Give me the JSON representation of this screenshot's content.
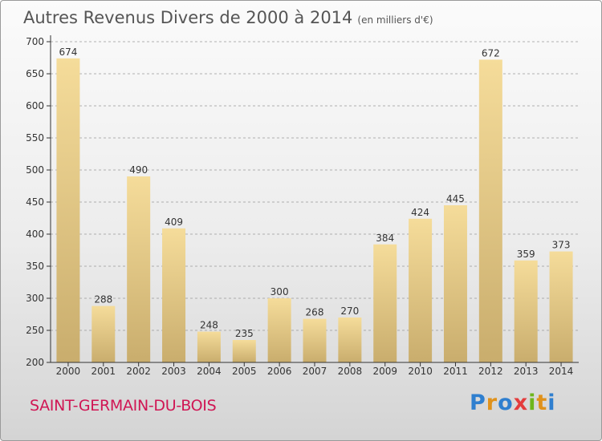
{
  "header": {
    "title": "Autres Revenus Divers de 2000 à 2014",
    "unit": "(en milliers d'€)"
  },
  "footer": {
    "commune": "SAINT-GERMAIN-DU-BOIS",
    "logo": "Proxiti"
  },
  "colors": {
    "bar_light": "#f5dc9a",
    "bar_dark": "#c9ad6d",
    "axis": "#333333",
    "grid": "#999999",
    "commune": "#d01654"
  },
  "chart_data": {
    "type": "bar",
    "categories": [
      "2000",
      "2001",
      "2002",
      "2003",
      "2004",
      "2005",
      "2006",
      "2007",
      "2008",
      "2009",
      "2010",
      "2011",
      "2012",
      "2013",
      "2014"
    ],
    "values": [
      674,
      288,
      490,
      409,
      248,
      235,
      300,
      268,
      270,
      384,
      424,
      445,
      672,
      359,
      373
    ],
    "title": "Autres Revenus Divers de 2000 à 2014",
    "subtitle": "(en milliers d'€)",
    "xlabel": "",
    "ylabel": "",
    "ylim": [
      200,
      700
    ],
    "yticks": [
      200,
      250,
      300,
      350,
      400,
      450,
      500,
      550,
      600,
      650,
      700
    ],
    "grid": "dashed horizontal",
    "data_labels": true
  }
}
